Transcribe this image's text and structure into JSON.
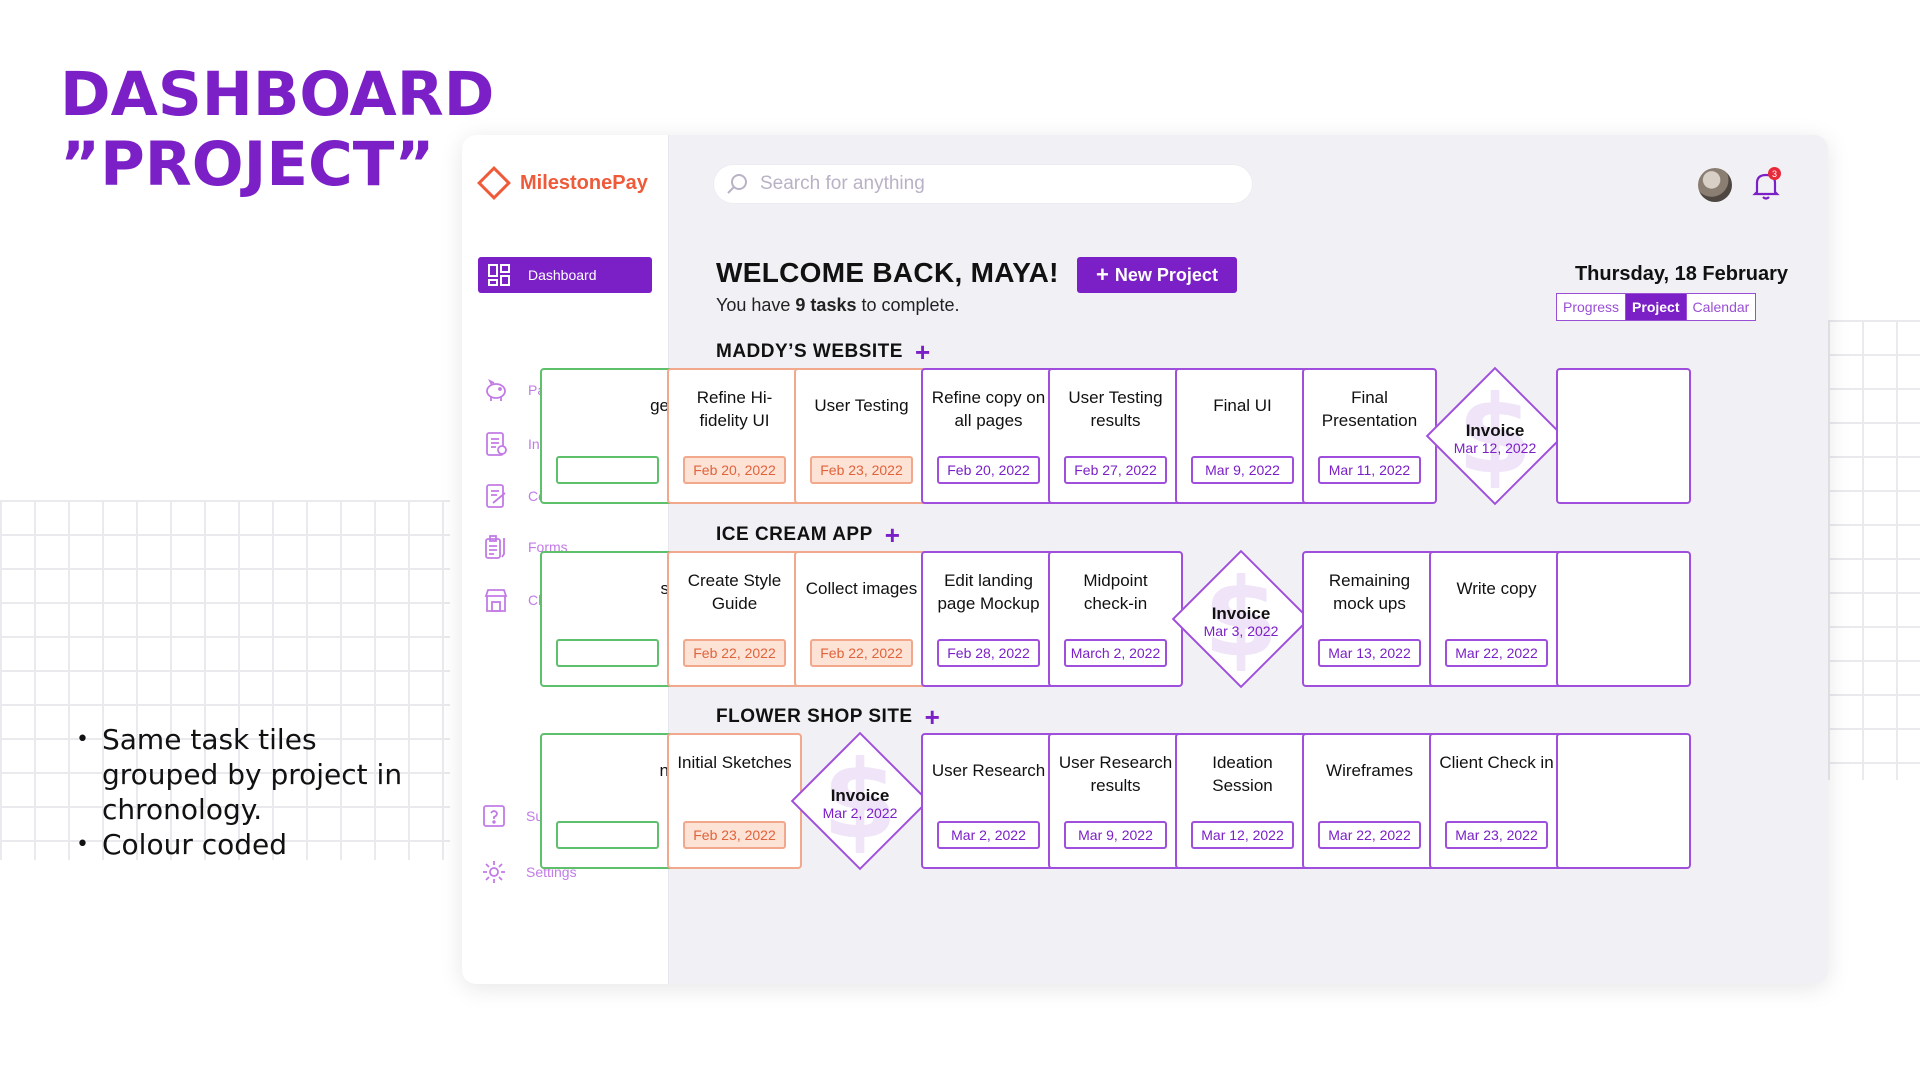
{
  "slide": {
    "title_line1": "DASHBOARD",
    "title_line2": "”PROJECT”",
    "bullets": [
      "Same task tiles grouped by project in chronology.",
      "Colour coded"
    ]
  },
  "app": {
    "brand": "MilestonePay",
    "search_placeholder": "Search for anything",
    "notification_count": "3",
    "sidebar": {
      "active": "Dashboard",
      "items": [
        "Payments",
        "Invoices",
        "Contracts",
        "Forms",
        "Clients"
      ],
      "bottom": [
        "Support",
        "Settings"
      ]
    },
    "welcome": "WELCOME BACK, MAYA!",
    "new_project": "New Project",
    "subtitle_pre": "You have ",
    "subtitle_bold": "9 tasks",
    "subtitle_post": " to complete.",
    "date": "Thursday, 18 February",
    "view_tabs": [
      "Progress",
      "Project",
      "Calendar"
    ],
    "active_view": "Project",
    "colors": {
      "accent": "#7b1fc7",
      "orange": "#e0633b",
      "green": "#5fc06c",
      "brand": "#ef5a39"
    },
    "projects": [
      {
        "name": "MADDY’S WEBSITE",
        "partial_left_text": "ge",
        "tasks": [
          {
            "type": "task",
            "name": "Refine Hi-fidelity UI",
            "date": "Feb 20, 2022",
            "color": "orange"
          },
          {
            "type": "task",
            "name": "User Testing",
            "date": "Feb 23, 2022",
            "color": "orange"
          },
          {
            "type": "task",
            "name": "Refine copy on all pages",
            "date": "Feb 20, 2022",
            "color": "purple"
          },
          {
            "type": "task",
            "name": "User Testing results",
            "date": "Feb 27, 2022",
            "color": "purple"
          },
          {
            "type": "task",
            "name": "Final UI",
            "date": "Mar 9, 2022",
            "color": "purple"
          },
          {
            "type": "task",
            "name": "Final Presentation",
            "date": "Mar 11, 2022",
            "color": "purple"
          },
          {
            "type": "invoice",
            "name": "Invoice",
            "date": "Mar 12, 2022"
          }
        ]
      },
      {
        "name": "ICE CREAM APP",
        "partial_left_text": "s",
        "tasks": [
          {
            "type": "task",
            "name": "Create Style Guide",
            "date": "Feb 22, 2022",
            "color": "orange"
          },
          {
            "type": "task",
            "name": "Collect images",
            "date": "Feb 22, 2022",
            "color": "orange"
          },
          {
            "type": "task",
            "name": "Edit landing page Mockup",
            "date": "Feb 28, 2022",
            "color": "purple"
          },
          {
            "type": "task",
            "name": "Midpoint check-in",
            "date": "March 2, 2022",
            "color": "purple"
          },
          {
            "type": "invoice",
            "name": "Invoice",
            "date": "Mar 3, 2022"
          },
          {
            "type": "task",
            "name": "Remaining mock ups",
            "date": "Mar 13, 2022",
            "color": "purple"
          },
          {
            "type": "task",
            "name": "Write copy",
            "date": "Mar 22, 2022",
            "color": "purple"
          }
        ]
      },
      {
        "name": "FLOWER SHOP SITE",
        "partial_left_text": "n",
        "tasks": [
          {
            "type": "task",
            "name": "Initial Sketches",
            "date": "Feb 23, 2022",
            "color": "orange"
          },
          {
            "type": "invoice",
            "name": "Invoice",
            "date": "Mar 2, 2022"
          },
          {
            "type": "task",
            "name": "User Research",
            "date": "Mar 2, 2022",
            "color": "purple"
          },
          {
            "type": "task",
            "name": "User Research results",
            "date": "Mar 9, 2022",
            "color": "purple"
          },
          {
            "type": "task",
            "name": "Ideation Session",
            "date": "Mar 12, 2022",
            "color": "purple"
          },
          {
            "type": "task",
            "name": "Wireframes",
            "date": "Mar 22, 2022",
            "color": "purple"
          },
          {
            "type": "task",
            "name": "Client Check in",
            "date": "Mar 23, 2022",
            "color": "purple"
          }
        ]
      }
    ]
  }
}
